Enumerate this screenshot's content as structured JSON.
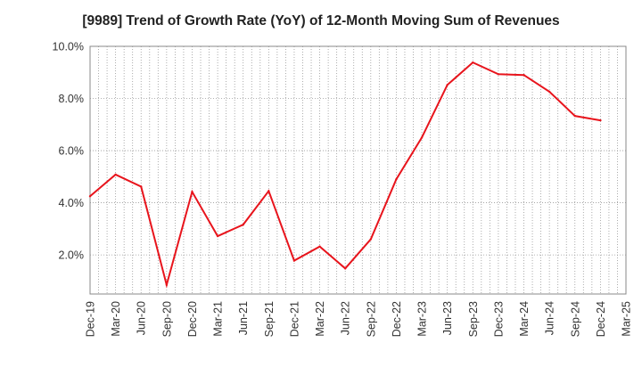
{
  "chart_data": {
    "type": "line",
    "title": "[9989]  Trend of Growth Rate (YoY) of 12-Month Moving Sum of Revenues",
    "xlabel": "",
    "ylabel": "",
    "ylim": [
      0.5,
      10.0
    ],
    "yticks": [
      2.0,
      4.0,
      6.0,
      8.0,
      10.0
    ],
    "ytick_labels": [
      "2.0%",
      "4.0%",
      "6.0%",
      "8.0%",
      "10.0%"
    ],
    "x_tick_labels": [
      "Dec-19",
      "Mar-20",
      "Jun-20",
      "Sep-20",
      "Dec-20",
      "Mar-21",
      "Jun-21",
      "Sep-21",
      "Dec-21",
      "Mar-22",
      "Jun-22",
      "Sep-22",
      "Dec-22",
      "Mar-23",
      "Jun-23",
      "Sep-23",
      "Dec-23",
      "Mar-24",
      "Jun-24",
      "Sep-24",
      "Dec-24",
      "Mar-25"
    ],
    "grid": true,
    "series": [
      {
        "color": "#e8141c",
        "x": [
          "Dec-19",
          "Mar-20",
          "Jun-20",
          "Sep-20",
          "Dec-20",
          "Mar-21",
          "Jun-21",
          "Sep-21",
          "Dec-21",
          "Mar-22",
          "Jun-22",
          "Sep-22",
          "Dec-22",
          "Mar-23",
          "Jun-23",
          "Sep-23",
          "Dec-23",
          "Mar-24",
          "Jun-24",
          "Sep-24",
          "Dec-24"
        ],
        "values": [
          4.25,
          5.08,
          4.62,
          0.85,
          4.42,
          2.72,
          3.16,
          4.45,
          1.78,
          2.32,
          1.48,
          2.6,
          4.9,
          6.5,
          8.52,
          9.38,
          8.93,
          8.9,
          8.26,
          7.33,
          7.16
        ]
      }
    ]
  }
}
